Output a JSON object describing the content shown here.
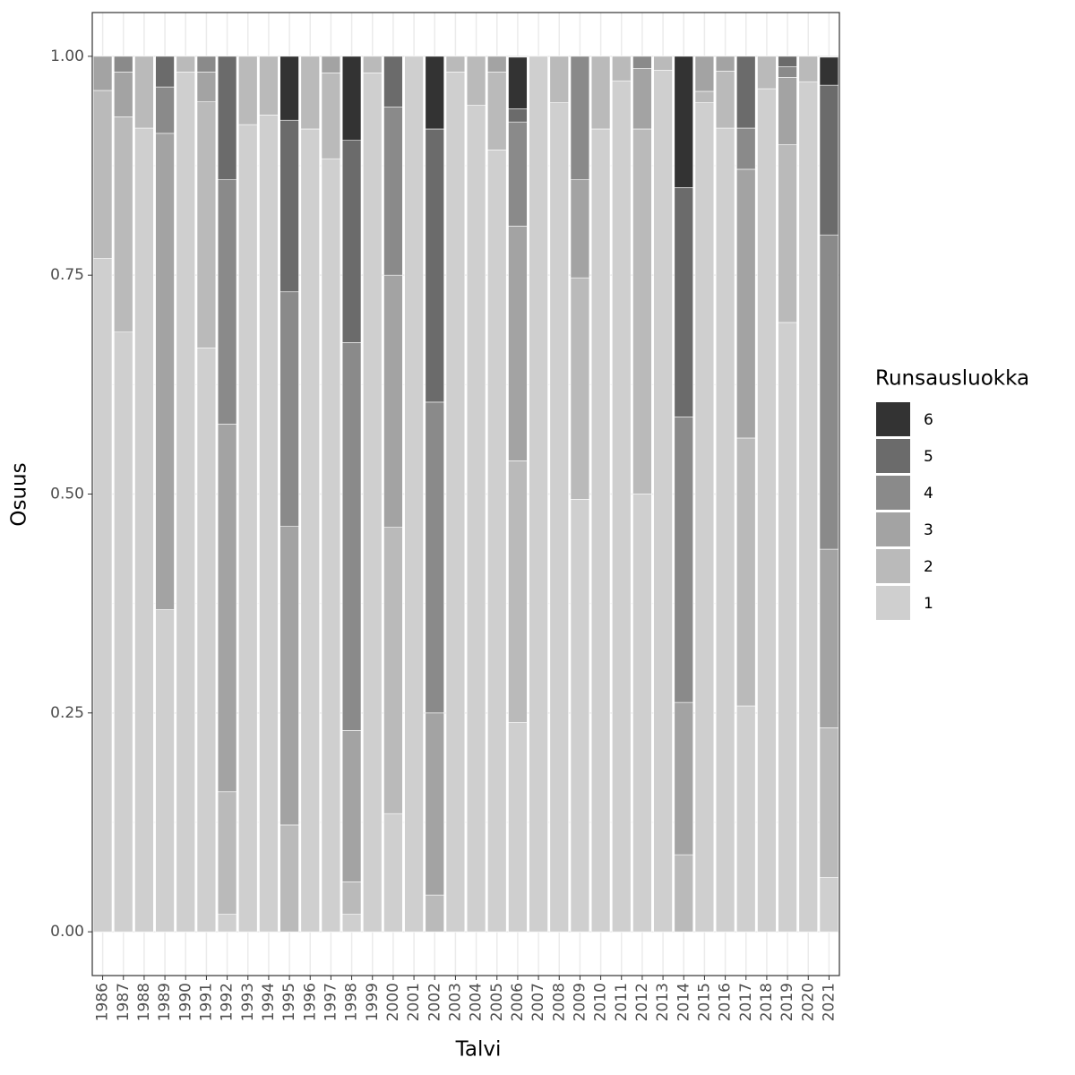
{
  "chart_data": {
    "type": "stacked_bar",
    "x_label": "Talvi",
    "y_label": "Osuus",
    "legend_title": "Runsausluokka",
    "categories": [
      "1986",
      "1987",
      "1988",
      "1989",
      "1990",
      "1991",
      "1992",
      "1993",
      "1994",
      "1995",
      "1996",
      "1997",
      "1998",
      "1999",
      "2000",
      "2001",
      "2002",
      "2003",
      "2004",
      "2005",
      "2006",
      "2007",
      "2008",
      "2009",
      "2010",
      "2011",
      "2012",
      "2013",
      "2014",
      "2015",
      "2016",
      "2017",
      "2018",
      "2019",
      "2020",
      "2021"
    ],
    "series": [
      {
        "name": "1",
        "color": "#cfcfcf",
        "values": [
          0.769,
          0.685,
          0.918,
          0.368,
          0.982,
          0.667,
          0.02,
          0.922,
          0.933,
          0,
          0.917,
          0.883,
          0.02,
          0.981,
          0.135,
          1,
          0,
          0.982,
          0.944,
          0.893,
          0.239,
          1,
          0.947,
          0.494,
          0.917,
          0.972,
          0.5,
          0.984,
          0,
          0.947,
          0.918,
          0.258,
          0.963,
          0.696,
          0.971,
          0.062
        ]
      },
      {
        "name": "2",
        "color": "#bababa",
        "values": [
          0.192,
          0.246,
          0.082,
          0,
          0.018,
          0.281,
          0.14,
          0.078,
          0.067,
          0.122,
          0.083,
          0.098,
          0.037,
          0.019,
          0.327,
          0,
          0.042,
          0.018,
          0.056,
          0.089,
          0.299,
          0,
          0.053,
          0.253,
          0.083,
          0.028,
          0.417,
          0.016,
          0.088,
          0.013,
          0.065,
          0.306,
          0.037,
          0.203,
          0.029,
          0.171
        ]
      },
      {
        "name": "3",
        "color": "#a3a3a3",
        "values": [
          0.039,
          0.051,
          0,
          0.544,
          0,
          0.034,
          0.42,
          0,
          0,
          0.341,
          0,
          0.019,
          0.173,
          0,
          0.288,
          0,
          0.208,
          0,
          0,
          0.018,
          0.268,
          0,
          0,
          0.112,
          0,
          0,
          0.069,
          0,
          0.174,
          0.04,
          0.017,
          0.307,
          0,
          0.077,
          0,
          0.204
        ]
      },
      {
        "name": "4",
        "color": "#8a8a8a",
        "values": [
          0,
          0.018,
          0,
          0.053,
          0,
          0.018,
          0.279,
          0,
          0,
          0.268,
          0,
          0,
          0.443,
          0,
          0.192,
          0,
          0.355,
          0,
          0,
          0,
          0.119,
          0,
          0,
          0.141,
          0,
          0,
          0.014,
          0,
          0.326,
          0,
          0,
          0.047,
          0,
          0.012,
          0,
          0.359
        ]
      },
      {
        "name": "5",
        "color": "#6b6b6b",
        "values": [
          0,
          0,
          0,
          0.035,
          0,
          0,
          0.141,
          0,
          0,
          0.196,
          0,
          0,
          0.231,
          0,
          0.058,
          0,
          0.312,
          0,
          0,
          0,
          0.015,
          0,
          0,
          0,
          0,
          0,
          0,
          0,
          0.262,
          0,
          0,
          0.082,
          0,
          0.012,
          0,
          0.171
        ]
      },
      {
        "name": "6",
        "color": "#333333",
        "values": [
          0,
          0,
          0,
          0,
          0,
          0,
          0,
          0,
          0,
          0.073,
          0,
          0,
          0.096,
          0,
          0,
          0,
          0.083,
          0,
          0,
          0,
          0.059,
          0,
          0,
          0,
          0,
          0,
          0,
          0,
          0.15,
          0,
          0,
          0,
          0,
          0,
          0,
          0.032
        ]
      }
    ],
    "ylim": [
      -0.05,
      1.05
    ],
    "yticks": [
      {
        "value": 0,
        "label": "0.00"
      },
      {
        "value": 0.25,
        "label": "0.25"
      },
      {
        "value": 0.5,
        "label": "0.50"
      },
      {
        "value": 0.75,
        "label": "0.75"
      },
      {
        "value": 1,
        "label": "1.00"
      }
    ],
    "grid": true
  }
}
